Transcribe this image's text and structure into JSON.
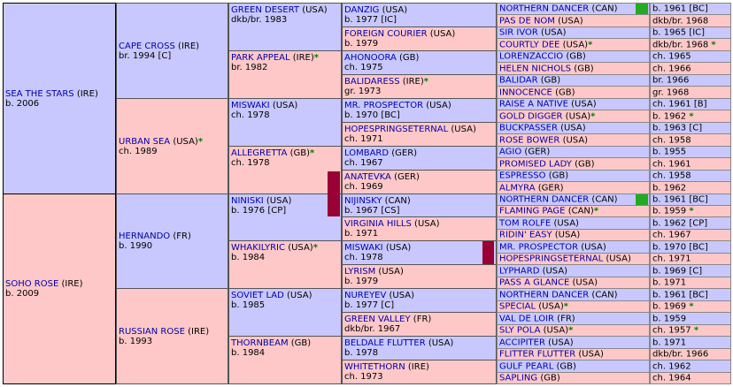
{
  "colors": {
    "male": "#c8c8ff",
    "female": "#ffc8c8",
    "link": "#0000aa",
    "star": "#008000",
    "inbreed_green": "#22aa22",
    "inbreed_maroon": "#990033"
  },
  "g1": [
    {
      "name": "SEA THE STARS",
      "country": "(IRE)",
      "info": "b. 2006",
      "sex": "male"
    },
    {
      "name": "SOHO ROSE",
      "country": "(IRE)",
      "info": "b. 2009",
      "sex": "female"
    }
  ],
  "g2": [
    {
      "name": "CAPE CROSS",
      "country": "(IRE)",
      "info": "br. 1994 [C]",
      "sex": "male"
    },
    {
      "name": "URBAN SEA",
      "country": "(USA)",
      "info": "ch. 1989",
      "sex": "female",
      "star": "*"
    },
    {
      "name": "HERNANDO",
      "country": "(FR)",
      "info": "b. 1990",
      "sex": "male"
    },
    {
      "name": "RUSSIAN ROSE",
      "country": "(IRE)",
      "info": "b. 1993",
      "sex": "female"
    }
  ],
  "g3": [
    {
      "name": "GREEN DESERT",
      "country": "(USA)",
      "info": "dkb/br. 1983",
      "sex": "male",
      "inline": true
    },
    {
      "name": "PARK APPEAL",
      "country": "(IRE)",
      "info": "br. 1982",
      "sex": "female",
      "star": "*"
    },
    {
      "name": "MISWAKI",
      "country": "(USA)",
      "info": "ch. 1978",
      "sex": "male"
    },
    {
      "name": "ALLEGRETTA",
      "country": "(GB)",
      "info": "ch. 1978",
      "sex": "female",
      "star": "*"
    },
    {
      "name": "NINISKI",
      "country": "(USA)",
      "info": "b. 1976 [CP]",
      "sex": "male"
    },
    {
      "name": "WHAKILYRIC",
      "country": "(USA)",
      "info": "b. 1984",
      "sex": "female",
      "star": "*"
    },
    {
      "name": "SOVIET LAD",
      "country": "(USA)",
      "info": "b. 1985",
      "sex": "male"
    },
    {
      "name": "THORNBEAM",
      "country": "(GB)",
      "info": "b. 1984",
      "sex": "female"
    }
  ],
  "g4": [
    {
      "name": "DANZIG",
      "country": "(USA)",
      "info": "b. 1977 [IC]",
      "sex": "male"
    },
    {
      "name": "FOREIGN COURIER",
      "country": "(USA)",
      "info": "b. 1979",
      "sex": "female"
    },
    {
      "name": "AHONOORA",
      "country": "(GB)",
      "info": "ch. 1975",
      "sex": "male"
    },
    {
      "name": "BALIDARESS",
      "country": "(IRE)",
      "info": "gr. 1973",
      "sex": "female",
      "star": "*"
    },
    {
      "name": "MR. PROSPECTOR",
      "country": "(USA)",
      "info": "b. 1970 [BC]",
      "sex": "male"
    },
    {
      "name": "HOPESPRINGSETERNAL",
      "country": "(USA)",
      "info": "ch. 1971",
      "sex": "female"
    },
    {
      "name": "LOMBARD",
      "country": "(GER)",
      "info": "ch. 1967",
      "sex": "male"
    },
    {
      "name": "ANATEVKA",
      "country": "(GER)",
      "info": "ch. 1969",
      "sex": "female"
    },
    {
      "name": "NIJINSKY",
      "country": "(CAN)",
      "info": "b. 1967 [CS]",
      "sex": "male"
    },
    {
      "name": "VIRGINIA HILLS",
      "country": "(USA)",
      "info": "b. 1971",
      "sex": "female"
    },
    {
      "name": "MISWAKI",
      "country": "(USA)",
      "info": "ch. 1978",
      "sex": "male"
    },
    {
      "name": "LYRISM",
      "country": "(USA)",
      "info": "b. 1979",
      "sex": "female"
    },
    {
      "name": "NUREYEV",
      "country": "(USA)",
      "info": "b. 1977 [C]",
      "sex": "male"
    },
    {
      "name": "GREEN VALLEY",
      "country": "(FR)",
      "info": "dkb/br. 1967",
      "sex": "female"
    },
    {
      "name": "BELDALE FLUTTER",
      "country": "(USA)",
      "info": "b. 1978",
      "sex": "male"
    },
    {
      "name": "WHITETHORN",
      "country": "(IRE)",
      "info": "ch. 1973",
      "sex": "female"
    }
  ],
  "g5": [
    {
      "name": "NORTHERN DANCER",
      "country": "(CAN)",
      "info": "b. 1961 [BC]",
      "sex": "male"
    },
    {
      "name": "PAS DE NOM",
      "country": "(USA)",
      "info": "dkb/br. 1968",
      "sex": "female"
    },
    {
      "name": "SIR IVOR",
      "country": "(USA)",
      "info": "b. 1965 [IC]",
      "sex": "male"
    },
    {
      "name": "COURTLY DEE",
      "country": "(USA)",
      "info": "dkb/br. 1968",
      "sex": "female",
      "star": "*"
    },
    {
      "name": "LORENZACCIO",
      "country": "(GB)",
      "info": "ch. 1965",
      "sex": "male"
    },
    {
      "name": "HELEN NICHOLS",
      "country": "(GB)",
      "info": "ch. 1966",
      "sex": "female"
    },
    {
      "name": "BALIDAR",
      "country": "(GB)",
      "info": "br. 1966",
      "sex": "male"
    },
    {
      "name": "INNOCENCE",
      "country": "(GB)",
      "info": "gr. 1968",
      "sex": "female"
    },
    {
      "name": "RAISE A NATIVE",
      "country": "(USA)",
      "info": "ch. 1961 [B]",
      "sex": "male"
    },
    {
      "name": "GOLD DIGGER",
      "country": "(USA)",
      "info": "b. 1962",
      "sex": "female",
      "star": "*"
    },
    {
      "name": "BUCKPASSER",
      "country": "(USA)",
      "info": "b. 1963 [C]",
      "sex": "male"
    },
    {
      "name": "ROSE BOWER",
      "country": "(USA)",
      "info": "ch. 1958",
      "sex": "female"
    },
    {
      "name": "AGIO",
      "country": "(GER)",
      "info": "b. 1955",
      "sex": "male"
    },
    {
      "name": "PROMISED LADY",
      "country": "(GB)",
      "info": "ch. 1961",
      "sex": "female"
    },
    {
      "name": "ESPRESSO",
      "country": "(GB)",
      "info": "ch. 1958",
      "sex": "male"
    },
    {
      "name": "ALMYRA",
      "country": "(GER)",
      "info": "b. 1962",
      "sex": "female"
    },
    {
      "name": "NORTHERN DANCER",
      "country": "(CAN)",
      "info": "b. 1961 [BC]",
      "sex": "male"
    },
    {
      "name": "FLAMING PAGE",
      "country": "(CAN)",
      "info": "b. 1959",
      "sex": "female",
      "star": "*"
    },
    {
      "name": "TOM ROLFE",
      "country": "(USA)",
      "info": "b. 1962 [CP]",
      "sex": "male"
    },
    {
      "name": "RIDIN' EASY",
      "country": "(USA)",
      "info": "ch. 1967",
      "sex": "female"
    },
    {
      "name": "MR. PROSPECTOR",
      "country": "(USA)",
      "info": "b. 1970 [BC]",
      "sex": "male"
    },
    {
      "name": "HOPESPRINGSETERNAL",
      "country": "(USA)",
      "info": "ch. 1971",
      "sex": "female"
    },
    {
      "name": "LYPHARD",
      "country": "(USA)",
      "info": "b. 1969 [C]",
      "sex": "male"
    },
    {
      "name": "PASS A GLANCE",
      "country": "(USA)",
      "info": "b. 1971",
      "sex": "female"
    },
    {
      "name": "NORTHERN DANCER",
      "country": "(CAN)",
      "info": "b. 1961 [BC]",
      "sex": "male"
    },
    {
      "name": "SPECIAL",
      "country": "(USA)",
      "info": "b. 1969",
      "sex": "female",
      "star": "*"
    },
    {
      "name": "VAL DE LOIR",
      "country": "(FR)",
      "info": "b. 1959",
      "sex": "male"
    },
    {
      "name": "SLY POLA",
      "country": "(USA)",
      "info": "ch. 1957",
      "sex": "female",
      "star": "*"
    },
    {
      "name": "ACCIPITER",
      "country": "(USA)",
      "info": "b. 1971",
      "sex": "male"
    },
    {
      "name": "FLITTER FLUTTER",
      "country": "(USA)",
      "info": "dkb/br. 1966",
      "sex": "female"
    },
    {
      "name": "GULF PEARL",
      "country": "(GB)",
      "info": "ch. 1962",
      "sex": "male"
    },
    {
      "name": "SAPLING",
      "country": "(GB)",
      "info": "ch. 1964",
      "sex": "female"
    }
  ]
}
